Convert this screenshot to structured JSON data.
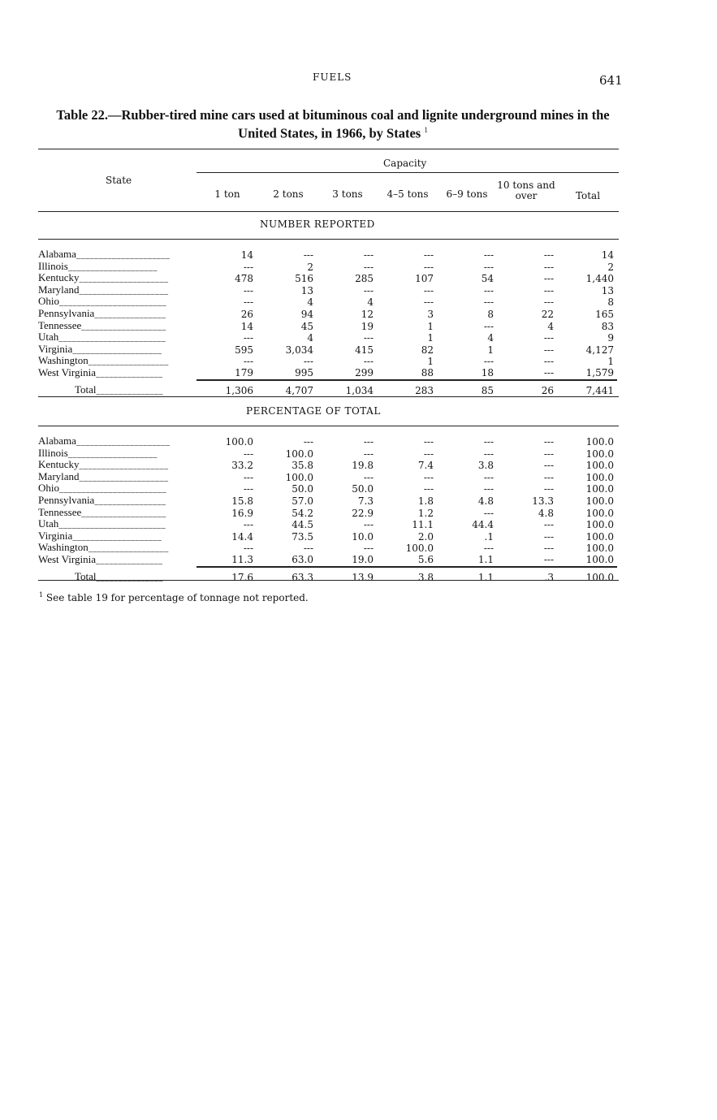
{
  "header": {
    "running_title": "FUELS",
    "page_number": "641"
  },
  "title": "Table 22.—Rubber-tired mine cars used at bituminous coal and lignite underground mines in the United States, in 1966, by States",
  "title_footnote_mark": "1",
  "columns": {
    "state": "State",
    "group": "Capacity",
    "cols": [
      "1 ton",
      "2 tons",
      "3 tons",
      "4–5 tons",
      "6–9 tons",
      "10 tons and over",
      "Total"
    ]
  },
  "sections": [
    {
      "heading": "NUMBER REPORTED",
      "rows": [
        {
          "state": "Alabama",
          "values": [
            "14",
            "---",
            "---",
            "---",
            "---",
            "---",
            "14"
          ]
        },
        {
          "state": "Illinois",
          "values": [
            "---",
            "2",
            "---",
            "---",
            "---",
            "---",
            "2"
          ]
        },
        {
          "state": "Kentucky",
          "values": [
            "478",
            "516",
            "285",
            "107",
            "54",
            "---",
            "1,440"
          ]
        },
        {
          "state": "Maryland",
          "values": [
            "---",
            "13",
            "---",
            "---",
            "---",
            "---",
            "13"
          ]
        },
        {
          "state": "Ohio",
          "values": [
            "---",
            "4",
            "4",
            "---",
            "---",
            "---",
            "8"
          ]
        },
        {
          "state": "Pennsylvania",
          "values": [
            "26",
            "94",
            "12",
            "3",
            "8",
            "22",
            "165"
          ]
        },
        {
          "state": "Tennessee",
          "values": [
            "14",
            "45",
            "19",
            "1",
            "---",
            "4",
            "83"
          ]
        },
        {
          "state": "Utah",
          "values": [
            "---",
            "4",
            "---",
            "1",
            "4",
            "---",
            "9"
          ]
        },
        {
          "state": "Virginia",
          "values": [
            "595",
            "3,034",
            "415",
            "82",
            "1",
            "---",
            "4,127"
          ]
        },
        {
          "state": "Washington",
          "values": [
            "---",
            "---",
            "---",
            "1",
            "---",
            "---",
            "1"
          ]
        },
        {
          "state": "West Virginia",
          "values": [
            "179",
            "995",
            "299",
            "88",
            "18",
            "---",
            "1,579"
          ]
        }
      ],
      "total": {
        "state": "Total",
        "values": [
          "1,306",
          "4,707",
          "1,034",
          "283",
          "85",
          "26",
          "7,441"
        ]
      }
    },
    {
      "heading": "PERCENTAGE OF TOTAL",
      "rows": [
        {
          "state": "Alabama",
          "values": [
            "100.0",
            "---",
            "---",
            "---",
            "---",
            "---",
            "100.0"
          ]
        },
        {
          "state": "Illinois",
          "values": [
            "---",
            "100.0",
            "---",
            "---",
            "---",
            "---",
            "100.0"
          ]
        },
        {
          "state": "Kentucky",
          "values": [
            "33.2",
            "35.8",
            "19.8",
            "7.4",
            "3.8",
            "---",
            "100.0"
          ]
        },
        {
          "state": "Maryland",
          "values": [
            "---",
            "100.0",
            "---",
            "---",
            "---",
            "---",
            "100.0"
          ]
        },
        {
          "state": "Ohio",
          "values": [
            "---",
            "50.0",
            "50.0",
            "---",
            "---",
            "---",
            "100.0"
          ]
        },
        {
          "state": "Pennsylvania",
          "values": [
            "15.8",
            "57.0",
            "7.3",
            "1.8",
            "4.8",
            "13.3",
            "100.0"
          ]
        },
        {
          "state": "Tennessee",
          "values": [
            "16.9",
            "54.2",
            "22.9",
            "1.2",
            "---",
            "4.8",
            "100.0"
          ]
        },
        {
          "state": "Utah",
          "values": [
            "---",
            "44.5",
            "---",
            "11.1",
            "44.4",
            "---",
            "100.0"
          ]
        },
        {
          "state": "Virginia",
          "values": [
            "14.4",
            "73.5",
            "10.0",
            "2.0",
            ".1",
            "---",
            "100.0"
          ]
        },
        {
          "state": "Washington",
          "values": [
            "---",
            "---",
            "---",
            "100.0",
            "---",
            "---",
            "100.0"
          ]
        },
        {
          "state": "West Virginia",
          "values": [
            "11.3",
            "63.0",
            "19.0",
            "5.6",
            "1.1",
            "---",
            "100.0"
          ]
        }
      ],
      "total": {
        "state": "Total",
        "values": [
          "17.6",
          "63.3",
          "13.9",
          "3.8",
          "1.1",
          ".3",
          "100.0"
        ]
      }
    }
  ],
  "footnote": {
    "mark": "1",
    "text": "See table 19 for percentage of tonnage not reported."
  }
}
